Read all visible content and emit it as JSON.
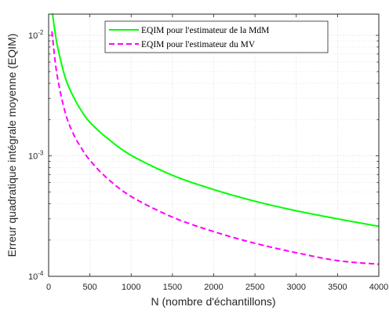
{
  "chart_data": {
    "type": "line",
    "title": "",
    "xlabel": "N (nombre d'échantillons)",
    "ylabel": "Erreur quadratique intégrale moyenne (EQIM)",
    "xlim": [
      0,
      4000
    ],
    "ylim": [
      0.0001,
      0.015
    ],
    "yscale": "log",
    "grid": true,
    "legend_position": "top-center",
    "x_ticks": [
      0,
      500,
      1000,
      1500,
      2000,
      2500,
      3000,
      3500,
      4000
    ],
    "x_tick_labels": [
      "0",
      "500",
      "1000",
      "1500",
      "2000",
      "2500",
      "3000",
      "3500",
      "4000"
    ],
    "y_ticks": [
      0.0001,
      0.001,
      0.01
    ],
    "y_tick_labels": [
      {
        "base": "10",
        "exp": "-4"
      },
      {
        "base": "10",
        "exp": "-3"
      },
      {
        "base": "10",
        "exp": "-2"
      }
    ],
    "series": [
      {
        "name": "EQIM pour l'estimateur de la MdM",
        "color": "#00ff00",
        "dash": "solid",
        "x": [
          40,
          100,
          200,
          300,
          400,
          500,
          700,
          1000,
          1500,
          2000,
          2500,
          3000,
          3500,
          4000
        ],
        "y": [
          0.0165,
          0.0086,
          0.0045,
          0.0031,
          0.00235,
          0.0019,
          0.00142,
          0.00101,
          0.00069,
          0.000525,
          0.00042,
          0.00035,
          0.0003,
          0.00026
        ]
      },
      {
        "name": "EQIM pour l'estimateur du MV",
        "color": "#ff00ff",
        "dash": "dashed",
        "x": [
          40,
          100,
          200,
          300,
          400,
          500,
          700,
          1000,
          1500,
          2000,
          2500,
          3000,
          3500,
          4000
        ],
        "y": [
          0.0108,
          0.0048,
          0.0023,
          0.00152,
          0.00115,
          0.00092,
          0.00066,
          0.00046,
          0.00031,
          0.000235,
          0.000188,
          0.000157,
          0.000135,
          0.000126
        ]
      }
    ]
  }
}
